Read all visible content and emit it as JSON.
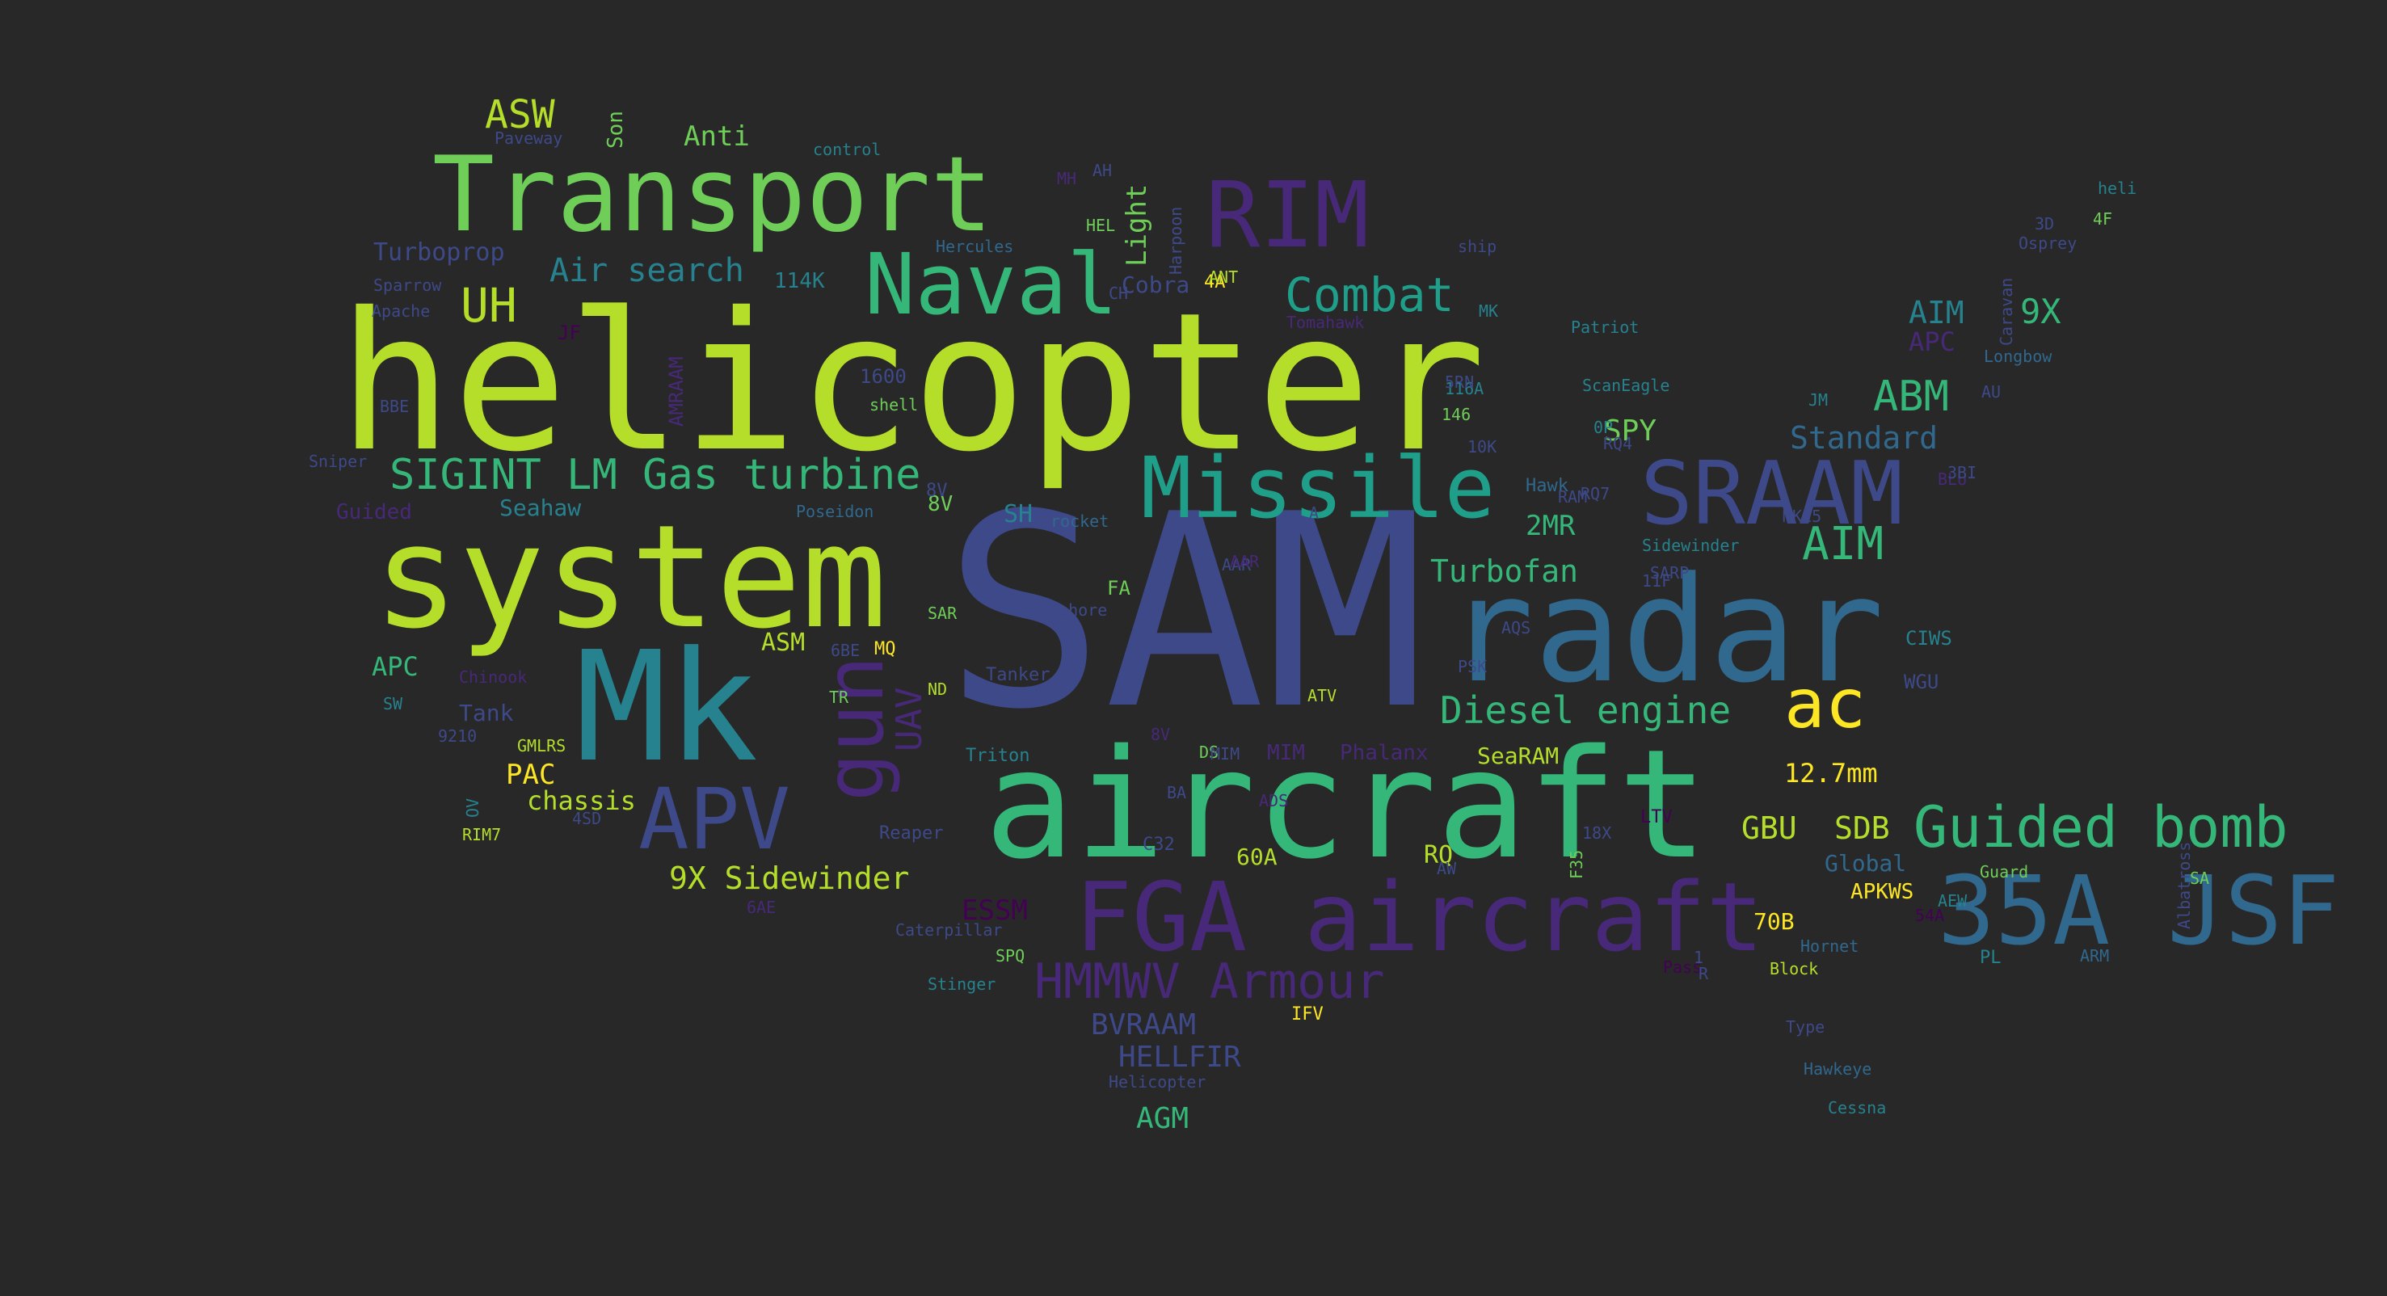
{
  "background": "#282828",
  "palette": {
    "yellow": "#fde725",
    "lime": "#b5de2b",
    "green": "#6ece58",
    "teal_green": "#35b779",
    "teal": "#1f9e89",
    "blue_teal": "#26828e",
    "blue": "#31688e",
    "indigo": "#3e4989",
    "purple": "#482878",
    "dark_purple": "#440154"
  },
  "words": [
    {
      "text": "SAM",
      "color": "#3e4989"
    },
    {
      "text": "helicopter",
      "color": "#b5de2b"
    },
    {
      "text": "system",
      "color": "#b5de2b"
    },
    {
      "text": "aircraft",
      "color": "#35b779"
    },
    {
      "text": "radar",
      "color": "#31688e"
    },
    {
      "text": "Mk",
      "color": "#26828e"
    },
    {
      "text": "Transport",
      "color": "#6ece58"
    },
    {
      "text": "FGA aircraft",
      "color": "#482878"
    },
    {
      "text": "35A JSF",
      "color": "#31688e"
    },
    {
      "text": "Missile",
      "color": "#1f9e89"
    },
    {
      "text": "SRAAM",
      "color": "#3e4989"
    },
    {
      "text": "RIM",
      "color": "#482878"
    },
    {
      "text": "Naval",
      "color": "#35b779"
    },
    {
      "text": "APV",
      "color": "#3e4989"
    },
    {
      "text": "ac",
      "color": "#fde725"
    },
    {
      "text": "Guided bomb",
      "color": "#35b779"
    },
    {
      "text": "gun",
      "color": "#482878"
    },
    {
      "text": "HMMWV Armour",
      "color": "#482878"
    },
    {
      "text": "SIGINT LM Gas turbine",
      "color": "#35b779"
    },
    {
      "text": "Combat",
      "color": "#1f9e89"
    },
    {
      "text": "Diesel engine",
      "color": "#35b779"
    },
    {
      "text": "ASW",
      "color": "#b5de2b"
    },
    {
      "text": "UH",
      "color": "#b5de2b"
    },
    {
      "text": "ABM",
      "color": "#35b779"
    },
    {
      "text": "AIM",
      "color": "#35b779"
    },
    {
      "text": "AIM",
      "color": "#26828e"
    },
    {
      "text": "9X",
      "color": "#35b779"
    },
    {
      "text": "Air search",
      "color": "#26828e"
    },
    {
      "text": "Standard",
      "color": "#31688e"
    },
    {
      "text": "Turbofan",
      "color": "#35b779"
    },
    {
      "text": "9X Sidewinder",
      "color": "#b5de2b"
    },
    {
      "text": "2MR",
      "color": "#35b779"
    },
    {
      "text": "SPY",
      "color": "#6ece58"
    },
    {
      "text": "GBU",
      "color": "#b5de2b"
    },
    {
      "text": "SDB",
      "color": "#b5de2b"
    },
    {
      "text": "12.7mm",
      "color": "#fde725"
    },
    {
      "text": "APC",
      "color": "#482878"
    },
    {
      "text": "APC",
      "color": "#35b779"
    },
    {
      "text": "PAC",
      "color": "#fde725"
    },
    {
      "text": "chassis",
      "color": "#b5de2b"
    },
    {
      "text": "Anti",
      "color": "#6ece58"
    },
    {
      "text": "Light",
      "color": "#6ece58"
    },
    {
      "text": "ESSM",
      "color": "#440154"
    },
    {
      "text": "SeaRAM",
      "color": "#b5de2b"
    },
    {
      "text": "BVRAAM",
      "color": "#3e4989"
    },
    {
      "text": "HELLFIR",
      "color": "#3e4989"
    },
    {
      "text": "AGM",
      "color": "#35b779"
    },
    {
      "text": "UAV",
      "color": "#482878"
    },
    {
      "text": "Seahaw",
      "color": "#26828e"
    },
    {
      "text": "Turboprop",
      "color": "#3e4989"
    },
    {
      "text": "Global",
      "color": "#31688e"
    },
    {
      "text": "APKWS",
      "color": "#fde725"
    },
    {
      "text": "60A",
      "color": "#b5de2b"
    },
    {
      "text": "RQ",
      "color": "#b5de2b"
    },
    {
      "text": "ASM",
      "color": "#b5de2b"
    },
    {
      "text": "Tank",
      "color": "#3e4989"
    },
    {
      "text": "SH",
      "color": "#26828e"
    },
    {
      "text": "8V",
      "color": "#6ece58"
    },
    {
      "text": "114K",
      "color": "#26828e"
    },
    {
      "text": "Cobra",
      "color": "#3e4989"
    },
    {
      "text": "AH",
      "color": "#3e4989"
    },
    {
      "text": "control",
      "color": "#26828e"
    },
    {
      "text": "Hercules",
      "color": "#31688e"
    },
    {
      "text": "Harpoon",
      "color": "#3e4989"
    },
    {
      "text": "Poseidon",
      "color": "#31688e"
    },
    {
      "text": "Hawk",
      "color": "#31688e"
    },
    {
      "text": "Sidewinder",
      "color": "#26828e"
    },
    {
      "text": "Patriot",
      "color": "#26828e"
    },
    {
      "text": "Longbow",
      "color": "#31688e"
    },
    {
      "text": "Osprey",
      "color": "#3e4989"
    },
    {
      "text": "Caravan",
      "color": "#3e4989"
    },
    {
      "text": "Stinger",
      "color": "#26828e"
    },
    {
      "text": "Caterpillar",
      "color": "#3e4989"
    },
    {
      "text": "Hawkeye",
      "color": "#31688e"
    },
    {
      "text": "Cessna",
      "color": "#26828e"
    },
    {
      "text": "Triton",
      "color": "#26828e"
    },
    {
      "text": "Tanker",
      "color": "#3e4989"
    },
    {
      "text": "Ashore",
      "color": "#3e4989"
    },
    {
      "text": "Phalanx",
      "color": "#482878"
    },
    {
      "text": "Chinook",
      "color": "#482878"
    },
    {
      "text": "Apache",
      "color": "#3e4989"
    },
    {
      "text": "Sparrow",
      "color": "#3e4989"
    },
    {
      "text": "shell",
      "color": "#6ece58"
    },
    {
      "text": "ScanEagle",
      "color": "#26828e"
    },
    {
      "text": "AMRAAM",
      "color": "#482878"
    },
    {
      "text": "Sniper",
      "color": "#3e4989"
    },
    {
      "text": "Guided",
      "color": "#482878"
    },
    {
      "text": "rocket",
      "color": "#31688e"
    },
    {
      "text": "Tomahawk",
      "color": "#482878"
    },
    {
      "text": "heli",
      "color": "#26828e"
    },
    {
      "text": "Block",
      "color": "#b5de2b"
    },
    {
      "text": "Guard",
      "color": "#6ece58"
    },
    {
      "text": "Reaper",
      "color": "#3e4989"
    },
    {
      "text": "Type",
      "color": "#3e4989"
    },
    {
      "text": "Helicopter",
      "color": "#3e4989"
    },
    {
      "text": "MIM",
      "color": "#482878"
    },
    {
      "text": "IFV",
      "color": "#fde725"
    },
    {
      "text": "ship",
      "color": "#3e4989"
    },
    {
      "text": "SPQ",
      "color": "#6ece58"
    },
    {
      "text": "Albatross",
      "color": "#3e4989"
    },
    {
      "text": "Hornet",
      "color": "#31688e"
    },
    {
      "text": "AEW",
      "color": "#26828e"
    },
    {
      "text": "PL",
      "color": "#26828e"
    },
    {
      "text": "ARM",
      "color": "#31688e"
    },
    {
      "text": "AAR",
      "color": "#3e4989"
    },
    {
      "text": "C32",
      "color": "#3e4989"
    },
    {
      "text": "FA",
      "color": "#6ece58"
    },
    {
      "text": "MQ",
      "color": "#fde725"
    },
    {
      "text": "ND",
      "color": "#b5de2b"
    },
    {
      "text": "PSK",
      "color": "#3e4989"
    },
    {
      "text": "ATV",
      "color": "#b5de2b"
    },
    {
      "text": "4A",
      "color": "#fde725"
    },
    {
      "text": "BA",
      "color": "#3e4989"
    },
    {
      "text": "SA",
      "color": "#6ece58"
    },
    {
      "text": "RAM",
      "color": "#3e4989"
    },
    {
      "text": "CIWS",
      "color": "#26828e"
    },
    {
      "text": "WGU",
      "color": "#3e4989"
    },
    {
      "text": "BLU",
      "color": "#482878"
    },
    {
      "text": "LTV",
      "color": "#440154"
    },
    {
      "text": "SARP",
      "color": "#3e4989"
    },
    {
      "text": "JF",
      "color": "#440154"
    },
    {
      "text": "70B",
      "color": "#fde725"
    },
    {
      "text": "AW",
      "color": "#3e4989"
    },
    {
      "text": "F35",
      "color": "#6ece58"
    },
    {
      "text": "RQ4",
      "color": "#3e4989"
    },
    {
      "text": "146",
      "color": "#6ece58"
    },
    {
      "text": "116A",
      "color": "#26828e"
    },
    {
      "text": "5RN",
      "color": "#3e4989"
    },
    {
      "text": "1600",
      "color": "#3e4989"
    },
    {
      "text": "10K",
      "color": "#3e4989"
    },
    {
      "text": "0P",
      "color": "#26828e"
    },
    {
      "text": "AQS",
      "color": "#3e4989"
    },
    {
      "text": "BBE",
      "color": "#3e4989"
    },
    {
      "text": "JM",
      "color": "#26828e"
    },
    {
      "text": "MK",
      "color": "#26828e"
    },
    {
      "text": "AU",
      "color": "#3e4989"
    },
    {
      "text": "3D",
      "color": "#3e4989"
    },
    {
      "text": "4F",
      "color": "#6ece58"
    },
    {
      "text": "CH",
      "color": "#3e4989"
    },
    {
      "text": "RIM7",
      "color": "#b5de2b"
    },
    {
      "text": "GMLRS",
      "color": "#b5de2b"
    },
    {
      "text": "SAR",
      "color": "#6ece58"
    },
    {
      "text": "6AE",
      "color": "#482878"
    },
    {
      "text": "8V",
      "color": "#482878"
    },
    {
      "text": "18X",
      "color": "#3e4989"
    },
    {
      "text": "MK15",
      "color": "#3e4989"
    },
    {
      "text": "54A",
      "color": "#440154"
    },
    {
      "text": "RQ7",
      "color": "#3e4989"
    },
    {
      "text": "1",
      "color": "#3e4989"
    },
    {
      "text": "Pass",
      "color": "#440154"
    },
    {
      "text": "4SD",
      "color": "#3e4989"
    },
    {
      "text": "9210",
      "color": "#3e4989"
    },
    {
      "text": "6BE",
      "color": "#3e4989"
    },
    {
      "text": "DS",
      "color": "#6ece58"
    },
    {
      "text": "ADS",
      "color": "#482878"
    },
    {
      "text": "SW",
      "color": "#26828e"
    },
    {
      "text": "AAR",
      "color": "#482878"
    },
    {
      "text": "MIM",
      "color": "#3e4989"
    },
    {
      "text": "ANT",
      "color": "#b5de2b"
    },
    {
      "text": "Paveway",
      "color": "#3e4989"
    },
    {
      "text": "8V",
      "color": "#3e4989"
    },
    {
      "text": "Son",
      "color": "#6ece58"
    },
    {
      "text": "HEL",
      "color": "#6ece58"
    },
    {
      "text": "MH",
      "color": "#482878"
    },
    {
      "text": "11F",
      "color": "#3e4989"
    },
    {
      "text": "3BI",
      "color": "#3e4989"
    },
    {
      "text": "R",
      "color": "#3e4989"
    },
    {
      "text": "TR",
      "color": "#6ece58"
    },
    {
      "text": "OV",
      "color": "#26828e"
    },
    {
      "text": "A",
      "color": "#3e4989"
    }
  ]
}
